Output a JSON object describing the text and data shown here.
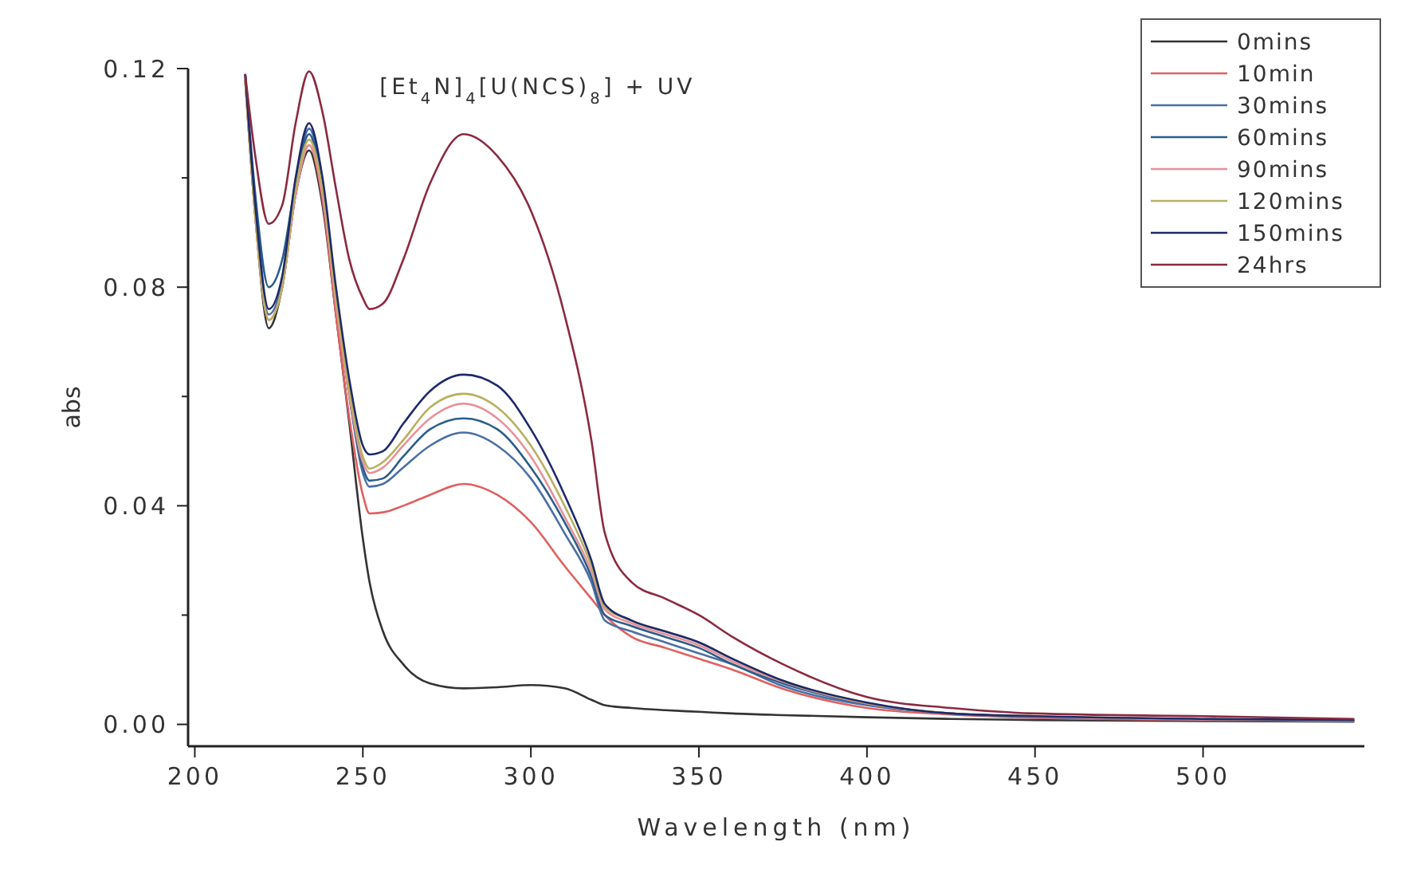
{
  "chart_data": {
    "type": "line",
    "title": "[Et$_{4}$N]$_{4}$[U(NCS)$_{8}$] + UV",
    "xlabel": "Wavelength (nm)",
    "ylabel": "abs",
    "x": [
      215,
      218,
      222,
      226,
      230,
      234,
      238,
      242,
      246,
      250,
      252,
      256,
      262,
      270,
      280,
      290,
      300,
      310,
      318,
      322,
      330,
      340,
      350,
      360,
      375,
      400,
      425,
      450,
      500,
      545
    ],
    "xlim": [
      198,
      548
    ],
    "xticks": [
      200,
      250,
      300,
      350,
      400,
      450,
      500
    ],
    "ylim": [
      -0.004,
      0.12
    ],
    "yticks": [
      {
        "value": 0,
        "label": "0.00"
      },
      {
        "value": 0.02,
        "label": null
      },
      {
        "value": 0.04,
        "label": "0.04"
      },
      {
        "value": 0.06,
        "label": null
      },
      {
        "value": 0.08,
        "label": "0.08"
      },
      {
        "value": 0.1,
        "label": null
      },
      {
        "value": 0.12,
        "label": "0.12"
      }
    ],
    "grid": false,
    "legend": "top right",
    "marker": "none",
    "line_style": "solid",
    "series": [
      {
        "name": "0mins",
        "color": "#333333",
        "values": [
          0.118,
          0.093,
          0.0725,
          0.08,
          0.097,
          0.105,
          0.095,
          0.075,
          0.055,
          0.034,
          0.026,
          0.017,
          0.011,
          0.0075,
          0.0066,
          0.0068,
          0.0072,
          0.0066,
          0.0045,
          0.0035,
          0.003,
          0.0026,
          0.0023,
          0.002,
          0.0017,
          0.0013,
          0.001,
          0.0008,
          0.0006,
          0.0005
        ]
      },
      {
        "name": "10min",
        "color": "#e06060",
        "values": [
          0.118,
          0.093,
          0.074,
          0.08,
          0.097,
          0.106,
          0.096,
          0.075,
          0.056,
          0.042,
          0.0386,
          0.0388,
          0.04,
          0.042,
          0.044,
          0.042,
          0.037,
          0.029,
          0.023,
          0.02,
          0.016,
          0.014,
          0.012,
          0.01,
          0.0065,
          0.003,
          0.0018,
          0.0012,
          0.0008,
          0.0006
        ]
      },
      {
        "name": "30mins",
        "color": "#4a6fa5",
        "values": [
          0.119,
          0.094,
          0.075,
          0.081,
          0.099,
          0.109,
          0.099,
          0.078,
          0.06,
          0.046,
          0.0435,
          0.044,
          0.047,
          0.051,
          0.0534,
          0.051,
          0.045,
          0.035,
          0.026,
          0.019,
          0.017,
          0.015,
          0.013,
          0.011,
          0.007,
          0.0035,
          0.002,
          0.0013,
          0.0009,
          0.0006
        ]
      },
      {
        "name": "60mins",
        "color": "#2a5d8a",
        "values": [
          0.119,
          0.097,
          0.08,
          0.085,
          0.099,
          0.108,
          0.098,
          0.078,
          0.06,
          0.047,
          0.0446,
          0.045,
          0.049,
          0.054,
          0.056,
          0.054,
          0.047,
          0.037,
          0.027,
          0.02,
          0.018,
          0.016,
          0.014,
          0.011,
          0.0075,
          0.0037,
          0.002,
          0.0014,
          0.0009,
          0.0007
        ]
      },
      {
        "name": "90mins",
        "color": "#e8909a",
        "values": [
          0.118,
          0.093,
          0.074,
          0.08,
          0.097,
          0.106,
          0.097,
          0.077,
          0.06,
          0.048,
          0.046,
          0.047,
          0.051,
          0.056,
          0.0587,
          0.056,
          0.049,
          0.038,
          0.028,
          0.021,
          0.0185,
          0.0165,
          0.0145,
          0.0115,
          0.0078,
          0.0038,
          0.002,
          0.0014,
          0.0009,
          0.0007
        ]
      },
      {
        "name": "120mins",
        "color": "#b8b060",
        "values": [
          0.118,
          0.093,
          0.074,
          0.08,
          0.098,
          0.107,
          0.098,
          0.078,
          0.061,
          0.049,
          0.0468,
          0.048,
          0.052,
          0.058,
          0.0605,
          0.058,
          0.051,
          0.04,
          0.029,
          0.0215,
          0.019,
          0.017,
          0.015,
          0.012,
          0.008,
          0.0039,
          0.002,
          0.0015,
          0.001,
          0.0007
        ]
      },
      {
        "name": "150mins",
        "color": "#1d2a6b",
        "values": [
          0.119,
          0.095,
          0.076,
          0.082,
          0.1,
          0.11,
          0.1,
          0.08,
          0.063,
          0.051,
          0.0494,
          0.05,
          0.055,
          0.061,
          0.064,
          0.062,
          0.054,
          0.042,
          0.03,
          0.022,
          0.019,
          0.017,
          0.015,
          0.012,
          0.008,
          0.004,
          0.002,
          0.0015,
          0.001,
          0.0008
        ]
      },
      {
        "name": "24hrs",
        "color": "#8b2a40",
        "values": [
          0.119,
          0.104,
          0.0916,
          0.095,
          0.11,
          0.1195,
          0.112,
          0.098,
          0.085,
          0.078,
          0.076,
          0.077,
          0.085,
          0.099,
          0.108,
          0.104,
          0.094,
          0.075,
          0.052,
          0.035,
          0.026,
          0.023,
          0.02,
          0.016,
          0.011,
          0.005,
          0.003,
          0.002,
          0.0015,
          0.001
        ]
      }
    ]
  }
}
